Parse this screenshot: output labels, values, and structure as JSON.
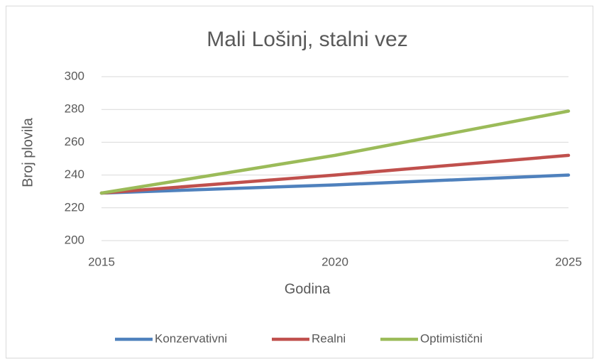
{
  "chart_data": {
    "type": "line",
    "title": "Mali Lošinj, stalni vez",
    "x_label": "Godina",
    "y_label": "Broj plovila",
    "x": [
      2015,
      2020,
      2025
    ],
    "xlim": [
      2015,
      2025
    ],
    "xticks": [
      2015,
      2020,
      2025
    ],
    "ylim": [
      200,
      300
    ],
    "yticks": [
      200,
      220,
      240,
      260,
      280,
      300
    ],
    "grid": true,
    "legend": "bottom",
    "series": [
      {
        "name": "Konzervativni",
        "color": "#4f81bd",
        "values": [
          229,
          234,
          240
        ]
      },
      {
        "name": "Realni",
        "color": "#c0504d",
        "values": [
          229,
          240,
          252
        ]
      },
      {
        "name": "Optimistični",
        "color": "#9bbb59",
        "values": [
          229,
          252,
          279
        ]
      }
    ]
  }
}
